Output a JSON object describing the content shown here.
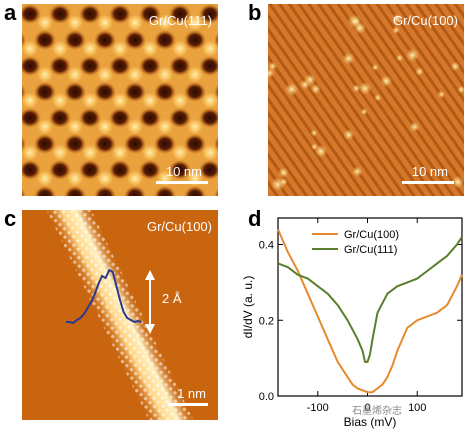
{
  "panels": {
    "a": {
      "letter": "a",
      "label": "Gr/Cu(111)",
      "scale": "10 nm"
    },
    "b": {
      "letter": "b",
      "label": "Gr/Cu(100)",
      "scale": "10 nm"
    },
    "c": {
      "letter": "c",
      "label": "Gr/Cu(100)",
      "scale": "1 nm",
      "height_label": "2 Å"
    },
    "d": {
      "letter": "d"
    }
  },
  "colors": {
    "stm_dark": "#3a1000",
    "stm_mid": "#c4620e",
    "stm_light": "#ffd27a",
    "profile_line": "#2b3a8f",
    "series_100": "#e58a2e",
    "series_111": "#5b7e2c"
  },
  "watermark": "石墨烯杂志",
  "chart_data": {
    "type": "line",
    "xlabel": "Bias (mV)",
    "ylabel": "dI/dV (a. u.)",
    "xlim": [
      -180,
      190
    ],
    "ylim": [
      0,
      0.47
    ],
    "xticks": [
      -100,
      0,
      100
    ],
    "xtick_labels": [
      "-100",
      "0",
      "100"
    ],
    "yticks": [
      0.0,
      0.2,
      0.4
    ],
    "ytick_labels": [
      "0.0",
      "0.2",
      "0.4"
    ],
    "legend_position": "top-center",
    "series": [
      {
        "name": "Gr/Cu(100)",
        "color": "#e58a2e",
        "x": [
          -180,
          -160,
          -140,
          -120,
          -100,
          -80,
          -60,
          -40,
          -30,
          -20,
          -10,
          0,
          10,
          20,
          30,
          40,
          50,
          60,
          80,
          100,
          120,
          140,
          160,
          180,
          190
        ],
        "y": [
          0.44,
          0.38,
          0.33,
          0.27,
          0.21,
          0.15,
          0.09,
          0.05,
          0.03,
          0.02,
          0.015,
          0.01,
          0.01,
          0.02,
          0.03,
          0.05,
          0.08,
          0.12,
          0.18,
          0.2,
          0.21,
          0.22,
          0.24,
          0.29,
          0.32
        ]
      },
      {
        "name": "Gr/Cu(111)",
        "color": "#5b7e2c",
        "x": [
          -180,
          -160,
          -140,
          -120,
          -100,
          -80,
          -60,
          -40,
          -20,
          -10,
          -5,
          0,
          5,
          10,
          20,
          40,
          60,
          80,
          100,
          120,
          140,
          160,
          180,
          190
        ],
        "y": [
          0.35,
          0.34,
          0.32,
          0.31,
          0.29,
          0.27,
          0.24,
          0.2,
          0.15,
          0.12,
          0.09,
          0.09,
          0.11,
          0.15,
          0.22,
          0.27,
          0.29,
          0.3,
          0.31,
          0.33,
          0.35,
          0.37,
          0.4,
          0.42
        ]
      }
    ]
  }
}
